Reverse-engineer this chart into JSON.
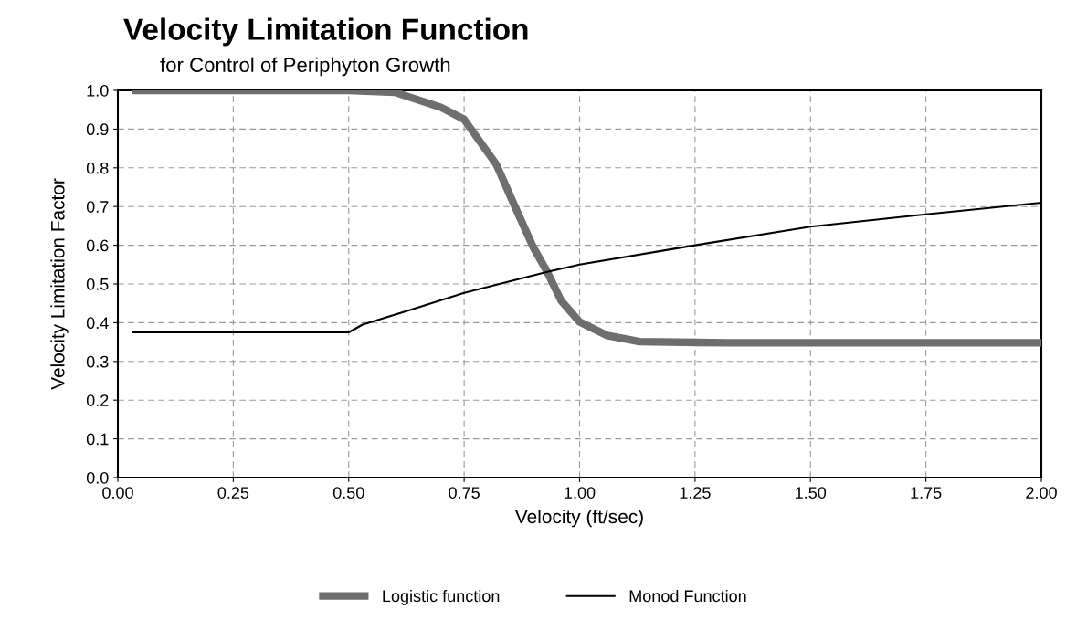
{
  "chart_data": {
    "type": "line",
    "title": "Velocity Limitation Function",
    "subtitle": "for Control of Periphyton Growth",
    "xlabel": "Velocity (ft/sec)",
    "ylabel": "Velocity Limitation Factor",
    "xlim": [
      0,
      2
    ],
    "xticks": [
      {
        "value": 0,
        "label": "0.00"
      },
      {
        "value": 0.25,
        "label": "0.25"
      },
      {
        "value": 0.5,
        "label": "0.50"
      },
      {
        "value": 0.75,
        "label": "0.75"
      },
      {
        "value": 1,
        "label": "1.00"
      },
      {
        "value": 1.25,
        "label": "1.25"
      },
      {
        "value": 1.5,
        "label": "1.50"
      },
      {
        "value": 1.75,
        "label": "1.75"
      },
      {
        "value": 2,
        "label": "2.00"
      }
    ],
    "ylim": [
      0,
      1
    ],
    "yticks": [
      {
        "value": 0,
        "label": "0.0"
      },
      0.1,
      0.2,
      0.3,
      0.4,
      0.5,
      0.6,
      0.7,
      0.8,
      0.9,
      {
        "value": 1,
        "label": "1.0"
      }
    ],
    "grid": true,
    "legend": "bottom",
    "line_style": "solid",
    "marker": "none",
    "series": [
      {
        "name": "Logistic function",
        "color": "#6e6e6e",
        "x": [
          0.03,
          0.5,
          0.6,
          0.7,
          0.75,
          0.82,
          0.86,
          0.9,
          0.93,
          0.96,
          1.0,
          1.06,
          1.13,
          1.32,
          2.0
        ],
        "values": [
          1.0,
          1.0,
          0.995,
          0.956,
          0.925,
          0.808,
          0.7,
          0.594,
          0.531,
          0.457,
          0.402,
          0.367,
          0.351,
          0.348,
          0.348
        ]
      },
      {
        "name": "Monod Function",
        "color": "#000000",
        "x": [
          0.03,
          0.5,
          0.53,
          0.625,
          0.75,
          0.93,
          1.0,
          1.25,
          1.5,
          1.75,
          2.0
        ],
        "values": [
          0.375,
          0.375,
          0.395,
          0.43,
          0.477,
          0.531,
          0.55,
          0.6,
          0.648,
          0.68,
          0.71
        ]
      }
    ]
  }
}
